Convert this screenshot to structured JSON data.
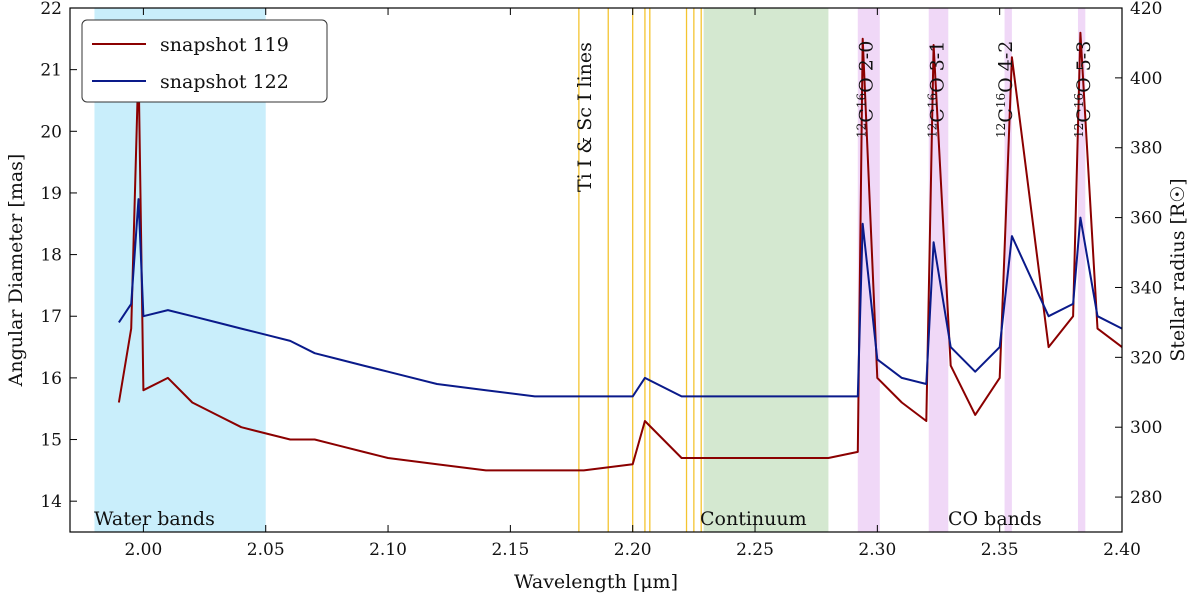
{
  "chart_data": {
    "type": "line",
    "xlabel": "Wavelength [μm]",
    "ylabel": "Angular Diameter [mas]",
    "ylabel_right": "Stellar radius [R☉]",
    "xlim": [
      1.97,
      2.4
    ],
    "ylim": [
      13.5,
      22.0
    ],
    "ylim_right": [
      270,
      420
    ],
    "x_ticks": [
      "2.00",
      "2.05",
      "2.10",
      "2.15",
      "2.20",
      "2.25",
      "2.30",
      "2.35",
      "2.40"
    ],
    "y_ticks": [
      "14",
      "15",
      "16",
      "17",
      "18",
      "19",
      "20",
      "21",
      "22"
    ],
    "y_right_ticks": [
      "280",
      "300",
      "320",
      "340",
      "360",
      "380",
      "400",
      "420"
    ],
    "legend_position": "top-left",
    "series": [
      {
        "name": "snapshot 119",
        "color": "#8b0000",
        "x": [
          1.99,
          1.995,
          1.998,
          2.0,
          2.01,
          2.02,
          2.03,
          2.04,
          2.05,
          2.06,
          2.07,
          2.08,
          2.09,
          2.1,
          2.12,
          2.14,
          2.16,
          2.18,
          2.2,
          2.205,
          2.22,
          2.24,
          2.26,
          2.28,
          2.292,
          2.294,
          2.3,
          2.31,
          2.32,
          2.323,
          2.33,
          2.34,
          2.35,
          2.355,
          2.37,
          2.38,
          2.383,
          2.39,
          2.4
        ],
        "y": [
          15.6,
          16.8,
          21.1,
          15.8,
          16.0,
          15.6,
          15.4,
          15.2,
          15.1,
          15.0,
          15.0,
          14.9,
          14.8,
          14.7,
          14.6,
          14.5,
          14.5,
          14.5,
          14.6,
          15.3,
          14.7,
          14.7,
          14.7,
          14.7,
          14.8,
          21.5,
          16.0,
          15.6,
          15.3,
          21.4,
          16.2,
          15.4,
          16.0,
          21.2,
          16.5,
          17.0,
          21.6,
          16.8,
          16.5
        ]
      },
      {
        "name": "snapshot 122",
        "color": "#0a1a8a",
        "x": [
          1.99,
          1.995,
          1.998,
          2.0,
          2.01,
          2.02,
          2.03,
          2.04,
          2.05,
          2.06,
          2.07,
          2.08,
          2.09,
          2.1,
          2.12,
          2.14,
          2.16,
          2.18,
          2.2,
          2.205,
          2.22,
          2.24,
          2.26,
          2.28,
          2.292,
          2.294,
          2.3,
          2.31,
          2.32,
          2.323,
          2.33,
          2.34,
          2.35,
          2.355,
          2.37,
          2.38,
          2.383,
          2.39,
          2.4
        ],
        "y": [
          16.9,
          17.2,
          18.9,
          17.0,
          17.1,
          17.0,
          16.9,
          16.8,
          16.7,
          16.6,
          16.4,
          16.3,
          16.2,
          16.1,
          15.9,
          15.8,
          15.7,
          15.7,
          15.7,
          16.0,
          15.7,
          15.7,
          15.7,
          15.7,
          15.7,
          18.5,
          16.3,
          16.0,
          15.9,
          18.2,
          16.5,
          16.1,
          16.5,
          18.3,
          17.0,
          17.2,
          18.6,
          17.0,
          16.8
        ]
      }
    ],
    "shaded_regions": [
      {
        "label": "Water bands",
        "x0": 1.98,
        "x1": 2.05,
        "color": "#c9eefb"
      },
      {
        "label": "Continuum",
        "x0": 2.229,
        "x1": 2.28,
        "color": "#d4e8d0"
      },
      {
        "label": "",
        "x0": 2.292,
        "x1": 2.301,
        "color": "#f0d8f7"
      },
      {
        "label": "",
        "x0": 2.321,
        "x1": 2.329,
        "color": "#f0d8f7"
      },
      {
        "label": "",
        "x0": 2.352,
        "x1": 2.355,
        "color": "#f0d8f7"
      },
      {
        "label": "",
        "x0": 2.382,
        "x1": 2.385,
        "color": "#f0d8f7"
      }
    ],
    "shaded_labels": {
      "water": "Water bands",
      "continuum": "Continuum",
      "co": "CO bands"
    },
    "vlines": {
      "color": "#f4c430",
      "x": [
        2.178,
        2.19,
        2.2,
        2.205,
        2.207,
        2.222,
        2.225,
        2.228
      ]
    },
    "annotations": {
      "ti_sc": "Ti I & Sc I lines",
      "co_prefix": "12",
      "co_mid": "C",
      "co_sup2": "16",
      "co_letter": "O",
      "co_20": "2-0",
      "co_31": "3-1",
      "co_42": "4-2",
      "co_53": "5-3"
    },
    "annotation_positions": {
      "ti_sc_x": 2.183,
      "co_20_x": 2.298,
      "co_31_x": 2.327,
      "co_42_x": 2.355,
      "co_53_x": 2.387
    }
  }
}
